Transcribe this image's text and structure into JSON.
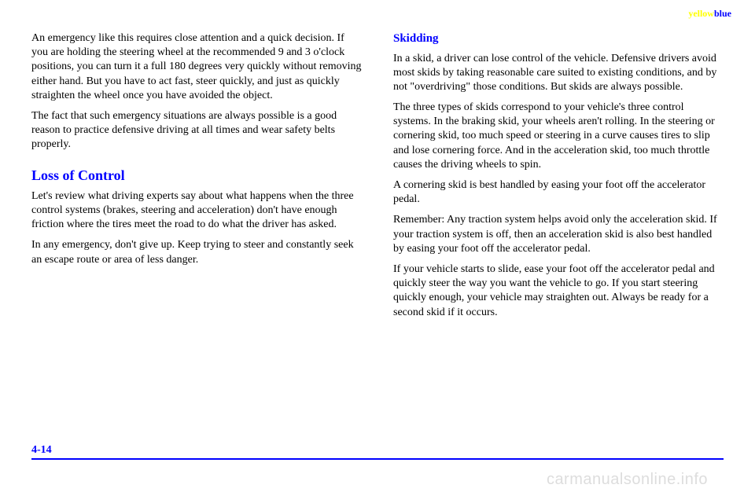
{
  "header": {
    "yellow": "yellow",
    "blue": "blue"
  },
  "left": {
    "p1": "An emergency like this requires close attention and a quick decision. If you are holding the steering wheel at the recommended 9 and 3 o'clock positions, you can turn it a full 180 degrees very quickly without removing either hand. But you have to act fast, steer quickly, and just as quickly straighten the wheel once you have avoided the object.",
    "p2": "The fact that such emergency situations are always possible is a good reason to practice defensive driving at all times and wear safety belts properly.",
    "p3": "Let's review what driving experts say about what happens when the three control systems (brakes, steering and acceleration) don't have enough friction where the tires meet the road to do what the driver has asked.",
    "p4": "In any emergency, don't give up. Keep trying to steer and constantly seek an escape route or area of less danger.",
    "loss_heading": "Loss of Control"
  },
  "right": {
    "skidding_heading": "Skidding",
    "p1": "In a skid, a driver can lose control of the vehicle. Defensive drivers avoid most skids by taking reasonable care suited to existing conditions, and by not \"overdriving\" those conditions. But skids are always possible.",
    "p2": "The three types of skids correspond to your vehicle's three control systems. In the braking skid, your wheels aren't rolling. In the steering or cornering skid, too much speed or steering in a curve causes tires to slip and lose cornering force. And in the acceleration skid, too much throttle causes the driving wheels to spin.",
    "p3": "A cornering skid is best handled by easing your foot off the accelerator pedal.",
    "p4": "Remember: Any traction system helps avoid only the acceleration skid. If your traction system is off, then an acceleration skid is also best handled by easing your foot off the accelerator pedal.",
    "p5": "If your vehicle starts to slide, ease your foot off the accelerator pedal and quickly steer the way you want the vehicle to go. If you start steering quickly enough, your vehicle may straighten out. Always be ready for a second skid if it occurs."
  },
  "footer": {
    "page": "4-14",
    "watermark": "carmanualsonline.info"
  }
}
